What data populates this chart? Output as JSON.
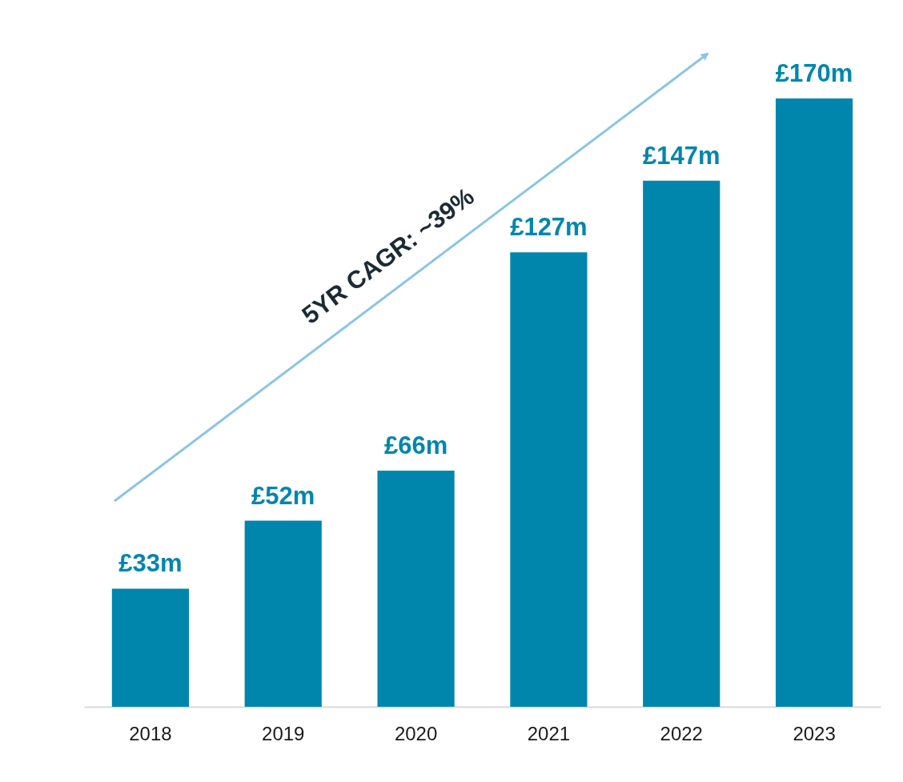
{
  "chart_data": {
    "type": "bar",
    "categories": [
      "2018",
      "2019",
      "2020",
      "2021",
      "2022",
      "2023"
    ],
    "values": [
      33,
      52,
      66,
      127,
      147,
      170
    ],
    "value_labels": [
      "£33m",
      "£52m",
      "£66m",
      "£127m",
      "£147m",
      "£170m"
    ],
    "color": "#0086ad",
    "annotations": [
      "5YR CAGR: ~39%"
    ]
  }
}
